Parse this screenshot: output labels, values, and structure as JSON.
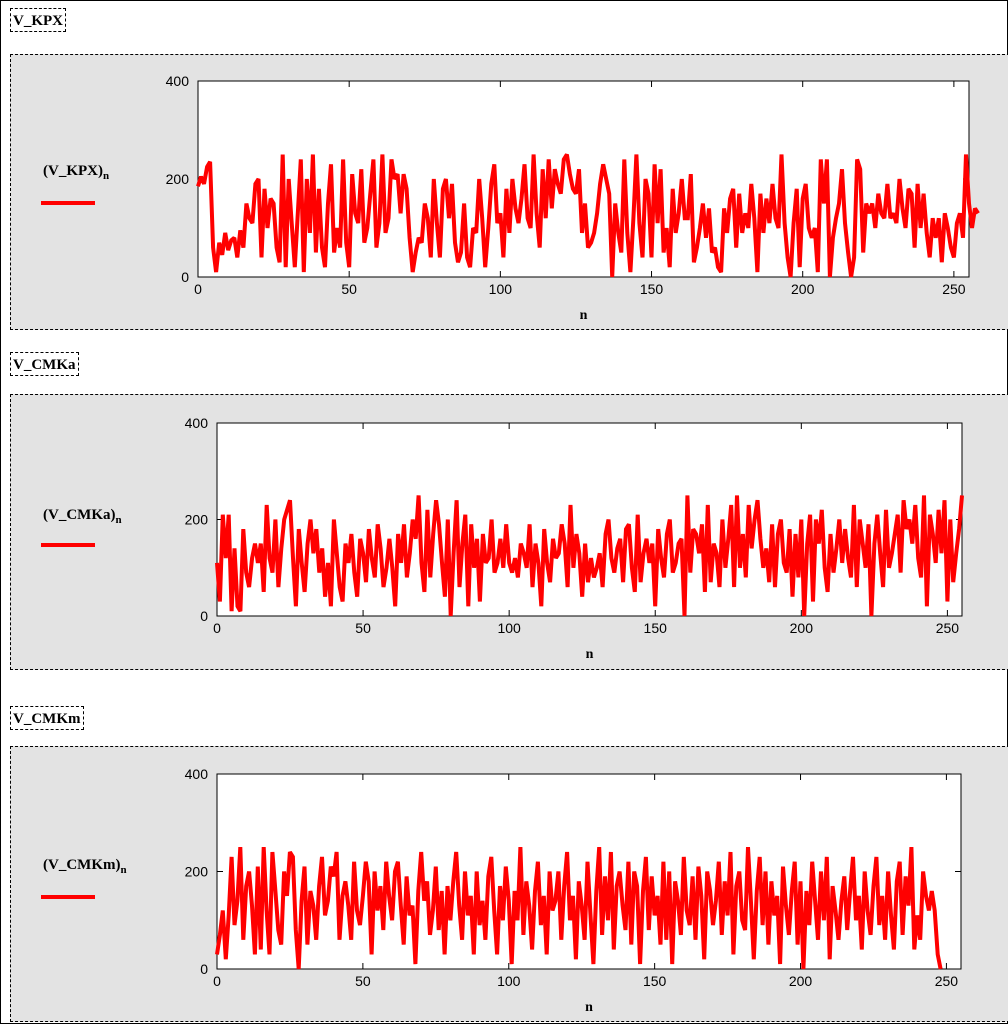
{
  "colors": {
    "series": "#ff0000",
    "region_bg": "#e3e3e3",
    "plot_bg": "#ffffff"
  },
  "chart_data": [
    {
      "type": "line",
      "section_label": "V_KPX",
      "ylabel": "(V_KPX)",
      "ylabel_sub": "n",
      "xlabel": "n",
      "xlim": [
        0,
        255
      ],
      "ylim": [
        0,
        400
      ],
      "xticks": [
        0,
        50,
        100,
        150,
        200,
        250
      ],
      "yticks": [
        0,
        200,
        400
      ],
      "series": [
        {
          "values": [
            185,
            205,
            190,
            225,
            235,
            60,
            10,
            70,
            45,
            90,
            55,
            75,
            80,
            40,
            95,
            60,
            150,
            120,
            110,
            190,
            200,
            40,
            180,
            100,
            160,
            150,
            60,
            30,
            250,
            20,
            200,
            110,
            20,
            130,
            240,
            10,
            200,
            90,
            250,
            50,
            180,
            60,
            20,
            150,
            230,
            50,
            100,
            60,
            240,
            70,
            20,
            210,
            130,
            110,
            220,
            70,
            100,
            170,
            240,
            60,
            110,
            250,
            90,
            120,
            240,
            200,
            210,
            130,
            210,
            180,
            80,
            10,
            50,
            80,
            70,
            150,
            120,
            40,
            200,
            110,
            40,
            180,
            200,
            120,
            190,
            70,
            30,
            50,
            150,
            40,
            20,
            100,
            90,
            200,
            120,
            20,
            100,
            190,
            230,
            110,
            130,
            40,
            180,
            90,
            200,
            140,
            110,
            160,
            230,
            120,
            100,
            250,
            130,
            60,
            220,
            120,
            240,
            140,
            220,
            190,
            170,
            240,
            250,
            210,
            180,
            170,
            220,
            90,
            150,
            60,
            70,
            90,
            130,
            190,
            230,
            200,
            170,
            0,
            150,
            90,
            50,
            240,
            90,
            10,
            120,
            250,
            110,
            40,
            200,
            170,
            40,
            230,
            110,
            220,
            50,
            100,
            20,
            180,
            90,
            130,
            200,
            120,
            120,
            210,
            30,
            60,
            100,
            150,
            80,
            140,
            50,
            60,
            20,
            10,
            140,
            90,
            160,
            180,
            60,
            170,
            90,
            130,
            100,
            190,
            120,
            10,
            170,
            90,
            160,
            110,
            190,
            120,
            100,
            250,
            110,
            40,
            0,
            110,
            180,
            20,
            160,
            190,
            100,
            80,
            100,
            10,
            240,
            150,
            240,
            0,
            80,
            120,
            150,
            220,
            110,
            50,
            0,
            40,
            240,
            220,
            50,
            150,
            130,
            150,
            100,
            170,
            130,
            120,
            190,
            120,
            130,
            110,
            200,
            140,
            100,
            180,
            170,
            60,
            190,
            100,
            170,
            90,
            40,
            120,
            80,
            120,
            30,
            130,
            100,
            60,
            40,
            110,
            130,
            80,
            250,
            150,
            100,
            140,
            130
          ]
        }
      ]
    },
    {
      "type": "line",
      "section_label": "V_CMKa",
      "ylabel": "(V_CMKa)",
      "ylabel_sub": "n",
      "xlabel": "n",
      "xlim": [
        0,
        255
      ],
      "ylim": [
        0,
        400
      ],
      "xticks": [
        0,
        50,
        100,
        150,
        200,
        250
      ],
      "yticks": [
        0,
        200,
        400
      ],
      "series": [
        {
          "values": [
            110,
            30,
            210,
            120,
            210,
            10,
            140,
            20,
            10,
            180,
            90,
            60,
            120,
            150,
            110,
            150,
            50,
            230,
            120,
            90,
            200,
            60,
            140,
            200,
            220,
            240,
            120,
            20,
            180,
            110,
            50,
            150,
            200,
            130,
            180,
            90,
            140,
            40,
            110,
            20,
            200,
            130,
            60,
            30,
            150,
            110,
            170,
            90,
            40,
            160,
            130,
            70,
            180,
            120,
            80,
            190,
            140,
            60,
            100,
            160,
            100,
            20,
            170,
            110,
            190,
            80,
            130,
            200,
            160,
            250,
            110,
            50,
            220,
            80,
            170,
            240,
            190,
            110,
            40,
            200,
            0,
            130,
            240,
            60,
            150,
            210,
            20,
            190,
            100,
            160,
            30,
            170,
            110,
            120,
            200,
            90,
            110,
            160,
            100,
            190,
            110,
            90,
            120,
            80,
            150,
            130,
            100,
            190,
            60,
            150,
            110,
            20,
            180,
            110,
            70,
            160,
            120,
            130,
            190,
            150,
            60,
            230,
            100,
            170,
            130,
            40,
            150,
            70,
            120,
            80,
            100,
            130,
            60,
            170,
            200,
            120,
            90,
            140,
            160,
            70,
            180,
            190,
            100,
            50,
            210,
            70,
            130,
            160,
            110,
            150,
            20,
            180,
            120,
            80,
            170,
            200,
            90,
            110,
            150,
            160,
            0,
            250,
            90,
            180,
            170,
            130,
            190,
            50,
            230,
            70,
            150,
            130,
            60,
            200,
            100,
            160,
            230,
            60,
            250,
            100,
            170,
            80,
            230,
            140,
            200,
            240,
            160,
            100,
            140,
            70,
            190,
            60,
            170,
            200,
            110,
            90,
            180,
            40,
            170,
            80,
            200,
            0,
            150,
            210,
            30,
            200,
            150,
            220,
            100,
            50,
            170,
            90,
            140,
            200,
            110,
            180,
            120,
            80,
            230,
            60,
            200,
            150,
            100,
            190,
            0,
            150,
            210,
            130,
            60,
            220,
            100,
            130,
            170,
            210,
            90,
            240,
            180,
            200,
            150,
            230,
            120,
            80,
            250,
            20,
            210,
            170,
            110,
            220,
            130,
            240,
            30,
            200,
            70,
            130,
            180,
            250
          ]
        }
      ]
    },
    {
      "type": "line",
      "section_label": "V_CMKm",
      "ylabel": "(V_CMKm)",
      "ylabel_sub": "n",
      "xlabel": "n",
      "xlim": [
        0,
        255
      ],
      "ylim": [
        0,
        400
      ],
      "xticks": [
        0,
        50,
        100,
        150,
        200,
        250
      ],
      "yticks": [
        0,
        200,
        400
      ],
      "series": [
        {
          "values": [
            30,
            70,
            120,
            20,
            110,
            230,
            90,
            140,
            250,
            60,
            170,
            200,
            130,
            30,
            210,
            40,
            250,
            120,
            30,
            240,
            160,
            80,
            50,
            200,
            150,
            240,
            230,
            80,
            0,
            140,
            210,
            50,
            160,
            130,
            60,
            170,
            230,
            110,
            140,
            210,
            190,
            240,
            60,
            150,
            180,
            130,
            60,
            220,
            120,
            90,
            150,
            220,
            180,
            30,
            200,
            120,
            170,
            80,
            220,
            150,
            100,
            200,
            220,
            130,
            50,
            190,
            110,
            130,
            10,
            160,
            240,
            140,
            180,
            70,
            120,
            210,
            80,
            160,
            30,
            170,
            100,
            180,
            240,
            130,
            60,
            200,
            110,
            150,
            30,
            200,
            90,
            140,
            60,
            190,
            230,
            120,
            30,
            170,
            100,
            210,
            140,
            10,
            160,
            100,
            250,
            70,
            180,
            130,
            40,
            160,
            220,
            90,
            150,
            30,
            200,
            120,
            140,
            200,
            60,
            170,
            240,
            100,
            150,
            20,
            180,
            130,
            60,
            220,
            110,
            10,
            160,
            250,
            70,
            190,
            100,
            240,
            40,
            170,
            200,
            130,
            80,
            220,
            50,
            200,
            170,
            10,
            160,
            230,
            80,
            190,
            110,
            150,
            50,
            220,
            60,
            200,
            10,
            180,
            140,
            70,
            230,
            120,
            90,
            190,
            60,
            210,
            150,
            20,
            200,
            160,
            90,
            140,
            220,
            70,
            180,
            110,
            240,
            30,
            170,
            200,
            100,
            80,
            250,
            140,
            20,
            160,
            230,
            90,
            200,
            50,
            180,
            110,
            150,
            10,
            210,
            130,
            70,
            160,
            220,
            50,
            180,
            0,
            160,
            90,
            220,
            140,
            60,
            200,
            100,
            230,
            20,
            170,
            120,
            60,
            140,
            190,
            80,
            160,
            230,
            100,
            150,
            40,
            200,
            120,
            70,
            170,
            230,
            90,
            150,
            60,
            200,
            110,
            40,
            180,
            220,
            70,
            190,
            130,
            250,
            40,
            110,
            60,
            200,
            150,
            120,
            160,
            120,
            30,
            0
          ]
        }
      ]
    }
  ]
}
